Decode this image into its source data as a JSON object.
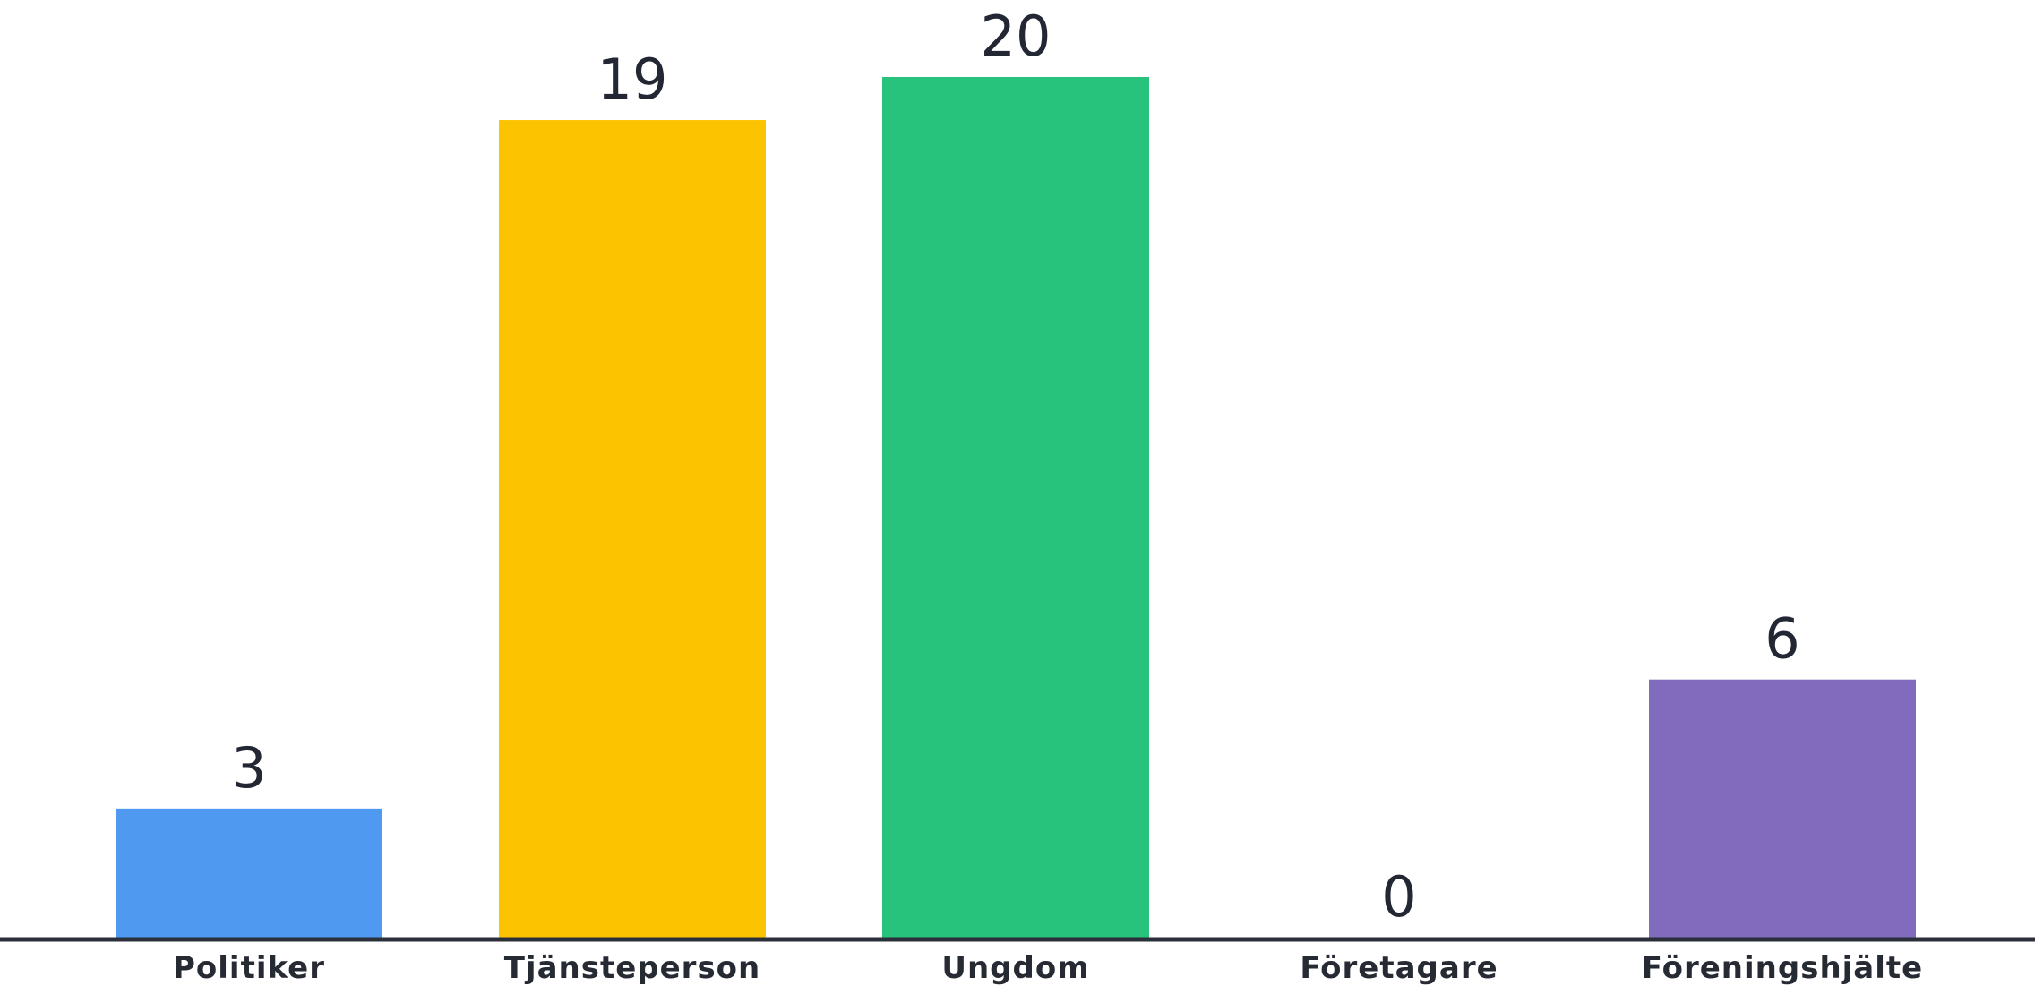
{
  "chart_data": {
    "type": "bar",
    "categories": [
      "Politiker",
      "Tjänsteperson",
      "Ungdom",
      "Företagare",
      "Föreningshjälte"
    ],
    "values": [
      3,
      19,
      20,
      0,
      6
    ],
    "value_labels": [
      "3",
      "19",
      "20",
      "0",
      "6"
    ],
    "colors": [
      "#4f99f0",
      "#fbc300",
      "#27c27c",
      "#ffffff",
      "#806bbd"
    ],
    "axis_color": "#2b2f3a",
    "title": "",
    "xlabel": "",
    "ylabel": "",
    "ylim": [
      0,
      20
    ],
    "grid": false,
    "legend": "none"
  }
}
